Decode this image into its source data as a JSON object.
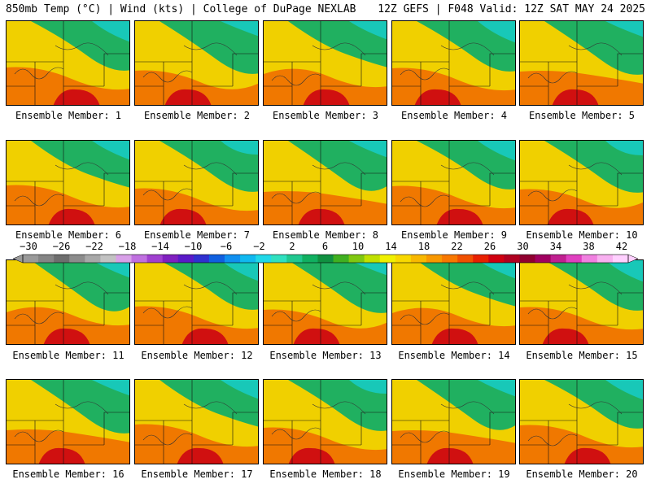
{
  "header": {
    "left": "850mb Temp (°C) | Wind (kts) | College of DuPage NEXLAB",
    "right": "12Z GEFS | F048 Valid: 12Z SAT MAY 24 2025"
  },
  "caption_prefix": "Ensemble Member: ",
  "members": [
    "1",
    "2",
    "3",
    "4",
    "5",
    "6",
    "7",
    "8",
    "9",
    "10",
    "11",
    "12",
    "13",
    "14",
    "15",
    "16",
    "17",
    "18",
    "19",
    "20"
  ],
  "colorbar": {
    "labels": [
      "−30",
      "−26",
      "−22",
      "−18",
      "−14",
      "−10",
      "−6",
      "−2",
      "2",
      "6",
      "10",
      "14",
      "18",
      "22",
      "26",
      "30",
      "34",
      "38",
      "42"
    ],
    "colors": [
      "#9a9a9a",
      "#858585",
      "#6e6e6e",
      "#8c8c8c",
      "#a8a8a8",
      "#c2c2c2",
      "#d8a0e8",
      "#c070e0",
      "#a040d0",
      "#8020c0",
      "#5a1ac8",
      "#3030d0",
      "#1060e0",
      "#1090f0",
      "#10b8f0",
      "#20d8e8",
      "#30e0c0",
      "#20c890",
      "#10b060",
      "#109040",
      "#40b020",
      "#80c810",
      "#c0e000",
      "#f0f000",
      "#f8d800",
      "#f8b800",
      "#f89800",
      "#f87800",
      "#f05000",
      "#e82000",
      "#d00010",
      "#b00020",
      "#900030",
      "#a00060",
      "#c02090",
      "#e040c0",
      "#f080e0",
      "#f8b0f0",
      "#ffd0ff"
    ]
  },
  "colors": {
    "cool": "#18c8b8",
    "mid": "#20b060",
    "warm": "#f0d000",
    "hot": "#f07800",
    "hottest": "#d01010"
  }
}
